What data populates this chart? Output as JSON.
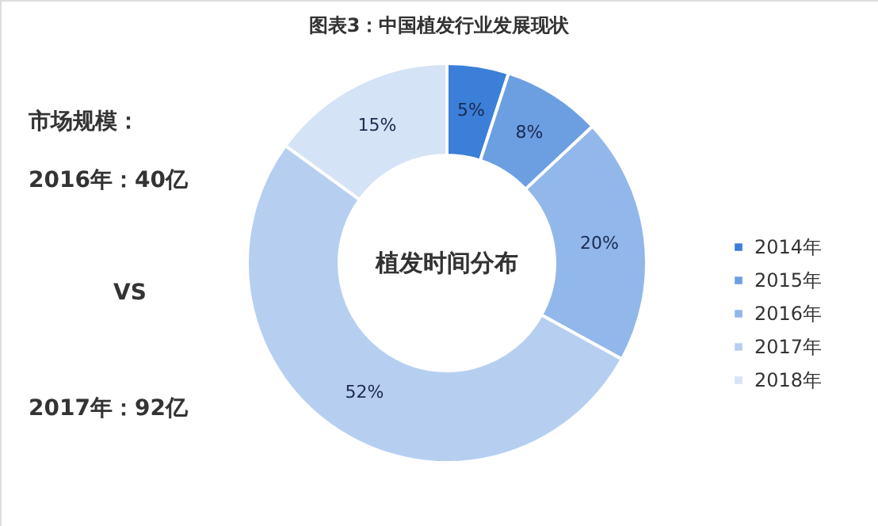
{
  "chart_data": {
    "type": "donut",
    "title": "图表3：中国植发行业发展现状",
    "categories": [
      "2014年",
      "2015年",
      "2016年",
      "2017年",
      "2018年"
    ],
    "values": [
      5,
      8,
      20,
      52,
      15
    ],
    "colors": [
      "#3c7fd8",
      "#6c9ee2",
      "#92b7ea",
      "#b6cff1",
      "#d5e3f6"
    ],
    "value_labels": [
      "5%",
      "8%",
      "20%",
      "52%",
      "15%"
    ],
    "legend": "right",
    "annotations": [
      "市场规模：",
      "2016年：40亿",
      "VS",
      "2017年：92亿",
      "植发时间分布"
    ]
  }
}
